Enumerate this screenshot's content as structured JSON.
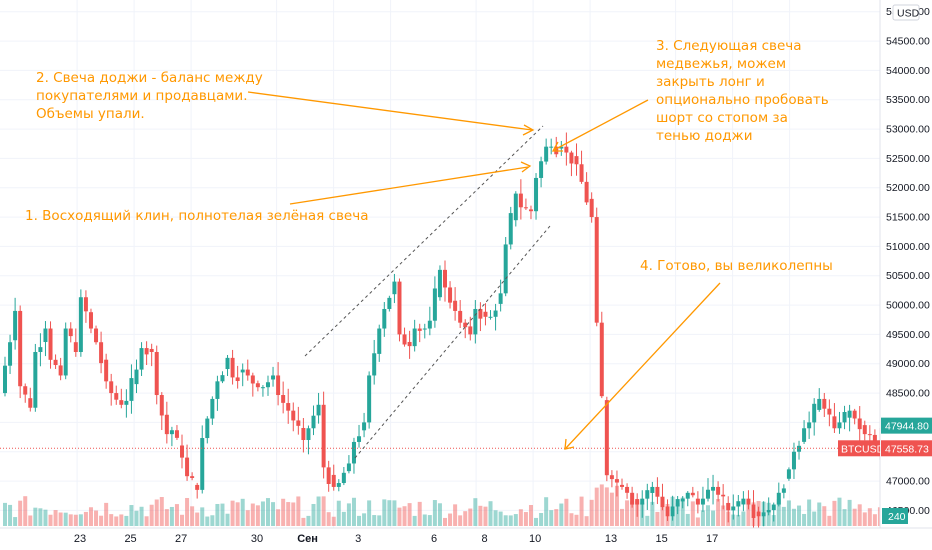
{
  "chart_data": {
    "type": "candlestick",
    "symbol": "BTCUSD",
    "currency": "USD",
    "y_ticks": [
      "46500.00",
      "47000.00",
      "47500.00",
      "48000.00",
      "48500.00",
      "49000.00",
      "49500.00",
      "50000.00",
      "50500.00",
      "51000.00",
      "51500.00",
      "52000.00",
      "52500.00",
      "53000.00",
      "53500.00",
      "54000.00",
      "54500.00",
      "55000.00"
    ],
    "y_range": [
      46200,
      55200
    ],
    "x_ticks": [
      {
        "label": "23",
        "index": 13,
        "bold": false
      },
      {
        "label": "25",
        "index": 23,
        "bold": false
      },
      {
        "label": "27",
        "index": 33,
        "bold": false
      },
      {
        "label": "30",
        "index": 48,
        "bold": false
      },
      {
        "label": "Сен",
        "index": 58,
        "bold": true
      },
      {
        "label": "3",
        "index": 68,
        "bold": false
      },
      {
        "label": "6",
        "index": 83,
        "bold": false
      },
      {
        "label": "8",
        "index": 93,
        "bold": false
      },
      {
        "label": "10",
        "index": 103,
        "bold": false
      },
      {
        "label": "13",
        "index": 118,
        "bold": false
      },
      {
        "label": "15",
        "index": 128,
        "bold": false
      },
      {
        "label": "17",
        "index": 138,
        "bold": false
      }
    ],
    "price_tags": [
      {
        "label": "47944.80",
        "value": 47944.8,
        "color": "#26a69a"
      },
      {
        "label": "BTCUSD",
        "value": 47558.73,
        "color": "#ef5350"
      },
      {
        "label": "47558.73",
        "value": 47558.73,
        "color": "#ef5350"
      }
    ],
    "volume_tag": {
      "label": "240",
      "color": "#26a69a"
    },
    "annotations": [
      "1. Восходящий клин, полнотелая зелёная свеча",
      "2. Свеча доджи - баланс между",
      "покупателями и продавцами.",
      "Объемы упали.",
      "3. Следующая свеча",
      "медвежья, можем",
      "закрыть лонг и",
      "опционально пробовать",
      "шорт со стопом за",
      "тенью доджи",
      "4. Готово, вы великолепны"
    ],
    "anchors": [
      {
        "open": 48500,
        "close": 49900
      },
      {
        "open": 48800,
        "close": 48250
      },
      {
        "open": 49000,
        "close": 49600
      },
      {
        "open": 49200,
        "close": 48800
      },
      {
        "open": 49800,
        "close": 49200
      },
      {
        "open": 50400,
        "close": 49600
      },
      {
        "open": 49700,
        "close": 48700
      },
      {
        "open": 48600,
        "close": 48300
      },
      {
        "open": 48100,
        "close": 48900
      },
      {
        "open": 49300,
        "close": 49200
      },
      {
        "open": 48800,
        "close": 47800
      },
      {
        "open": 48100,
        "close": 47400
      },
      {
        "open": 47200,
        "close": 46850
      },
      {
        "open": 47400,
        "close": 48400
      },
      {
        "open": 48500,
        "close": 49100
      },
      {
        "open": 48700,
        "close": 48900
      },
      {
        "open": 48900,
        "close": 48600
      },
      {
        "open": 48500,
        "close": 48800
      },
      {
        "open": 48600,
        "close": 48200
      },
      {
        "open": 48200,
        "close": 47700
      },
      {
        "open": 47700,
        "close": 48300
      },
      {
        "open": 47400,
        "close": 46900
      },
      {
        "open": 46800,
        "close": 47300
      },
      {
        "open": 47500,
        "close": 48000
      },
      {
        "open": 48400,
        "close": 49600
      },
      {
        "open": 49700,
        "close": 50400
      },
      {
        "open": 49600,
        "close": 49300
      },
      {
        "open": 49600,
        "close": 49600
      },
      {
        "open": 49300,
        "close": 50600
      },
      {
        "open": 50500,
        "close": 49900
      },
      {
        "open": 49800,
        "close": 49500
      },
      {
        "open": 50000,
        "close": 49800
      },
      {
        "open": 49600,
        "close": 50200
      },
      {
        "open": 50600,
        "close": 51900
      },
      {
        "open": 51700,
        "close": 51600
      },
      {
        "open": 51900,
        "close": 52700
      },
      {
        "open": 52700,
        "close": 52700
      },
      {
        "open": 52700,
        "close": 52400
      },
      {
        "open": 52400,
        "close": 51500
      },
      {
        "open": 51000,
        "close": 47100
      },
      {
        "open": 47100,
        "close": 46900
      },
      {
        "open": 46900,
        "close": 46600
      },
      {
        "open": 46600,
        "close": 46900
      },
      {
        "open": 46900,
        "close": 46400
      },
      {
        "open": 46500,
        "close": 46700
      },
      {
        "open": 46900,
        "close": 46600
      },
      {
        "open": 46600,
        "close": 46900
      },
      {
        "open": 46900,
        "close": 46500
      },
      {
        "open": 46500,
        "close": 46700
      },
      {
        "open": 46700,
        "close": 46400
      },
      {
        "open": 46400,
        "close": 46600
      },
      {
        "open": 46600,
        "close": 47200
      },
      {
        "open": 47300,
        "close": 47900
      },
      {
        "open": 47800,
        "close": 48400
      },
      {
        "open": 48400,
        "close": 47900
      },
      {
        "open": 47900,
        "close": 48200
      },
      {
        "open": 48200,
        "close": 47800
      },
      {
        "open": 47900,
        "close": 47559
      }
    ]
  }
}
